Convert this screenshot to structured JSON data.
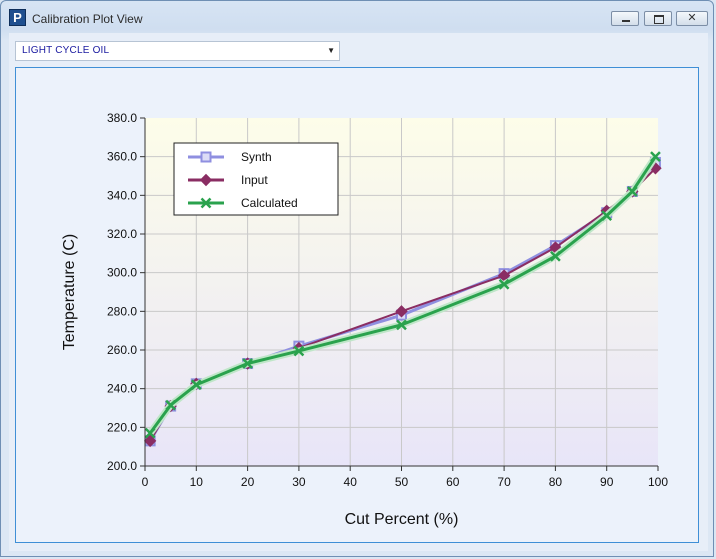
{
  "window": {
    "title": "Calibration Plot View",
    "icon": "P",
    "close_glyph": "✕"
  },
  "dropdown": {
    "selected": "LIGHT CYCLE OIL"
  },
  "chart_data": {
    "type": "line",
    "xlabel": "Cut Percent (%)",
    "ylabel": "Temperature (C)",
    "xlim": [
      0,
      100
    ],
    "ylim": [
      200,
      380
    ],
    "xticks": [
      "0",
      "10",
      "20",
      "30",
      "40",
      "50",
      "60",
      "70",
      "80",
      "90",
      "100"
    ],
    "yticks": [
      "200.0",
      "220.0",
      "240.0",
      "260.0",
      "280.0",
      "300.0",
      "320.0",
      "340.0",
      "360.0",
      "380.0"
    ],
    "grid": true,
    "legend_position": "top-left",
    "series": [
      {
        "name": "Synth",
        "color": "#8f8fe0",
        "marker": "square",
        "x": [
          1,
          5,
          10,
          20,
          30,
          50,
          70,
          80,
          90,
          95,
          99.5
        ],
        "y": [
          213,
          231,
          242.5,
          253,
          262,
          278,
          299.5,
          314,
          331,
          342,
          357
        ]
      },
      {
        "name": "Input",
        "color": "#8a2d63",
        "marker": "diamond",
        "x": [
          1,
          5,
          10,
          20,
          30,
          50,
          70,
          80,
          90,
          95,
          99.5
        ],
        "y": [
          213,
          231,
          242.5,
          253,
          261,
          280,
          298.5,
          313,
          332,
          342,
          354
        ]
      },
      {
        "name": "Calculated",
        "color": "#2aa24d",
        "marker": "x",
        "x": [
          1,
          5,
          10,
          20,
          30,
          50,
          70,
          80,
          90,
          95,
          99.5
        ],
        "y": [
          217,
          231.5,
          242,
          253,
          259.5,
          273,
          294,
          308.5,
          329.5,
          342,
          360
        ]
      }
    ]
  }
}
